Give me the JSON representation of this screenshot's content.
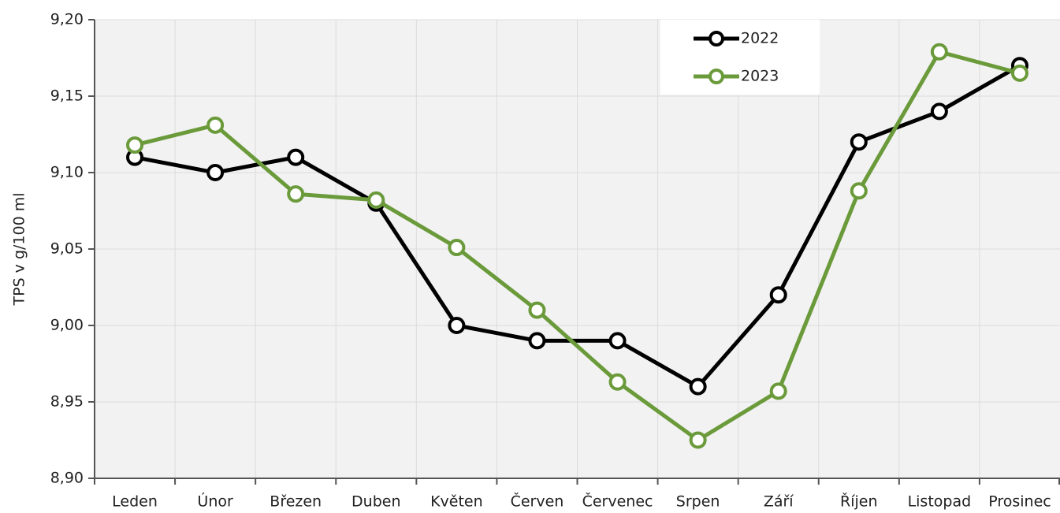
{
  "chart_data": {
    "type": "line",
    "y_label": "TPS v g/100 ml",
    "categories": [
      "Leden",
      "Únor",
      "Březen",
      "Duben",
      "Květen",
      "Červen",
      "Červenec",
      "Srpen",
      "Září",
      "Říjen",
      "Listopad",
      "Prosinec"
    ],
    "series": [
      {
        "name": "2022",
        "color": "#000000",
        "values": [
          9.11,
          9.1,
          9.11,
          9.08,
          9.0,
          8.99,
          8.99,
          8.96,
          9.02,
          9.12,
          9.14,
          9.17
        ]
      },
      {
        "name": "2023",
        "color": "#6a9a3a",
        "values": [
          9.118,
          9.131,
          9.086,
          9.082,
          9.051,
          9.01,
          8.963,
          8.925,
          8.957,
          9.088,
          9.179,
          9.165
        ]
      }
    ],
    "ylim": [
      8.9,
      9.2
    ],
    "yticks": [
      {
        "value": 8.9,
        "label": "8,90"
      },
      {
        "value": 8.95,
        "label": "8,95"
      },
      {
        "value": 9.0,
        "label": "9,00"
      },
      {
        "value": 9.05,
        "label": "9,05"
      },
      {
        "value": 9.1,
        "label": "9,10"
      },
      {
        "value": 9.15,
        "label": "9,15"
      },
      {
        "value": 9.2,
        "label": "9,20"
      }
    ],
    "grid": true,
    "legend": "upper right"
  }
}
